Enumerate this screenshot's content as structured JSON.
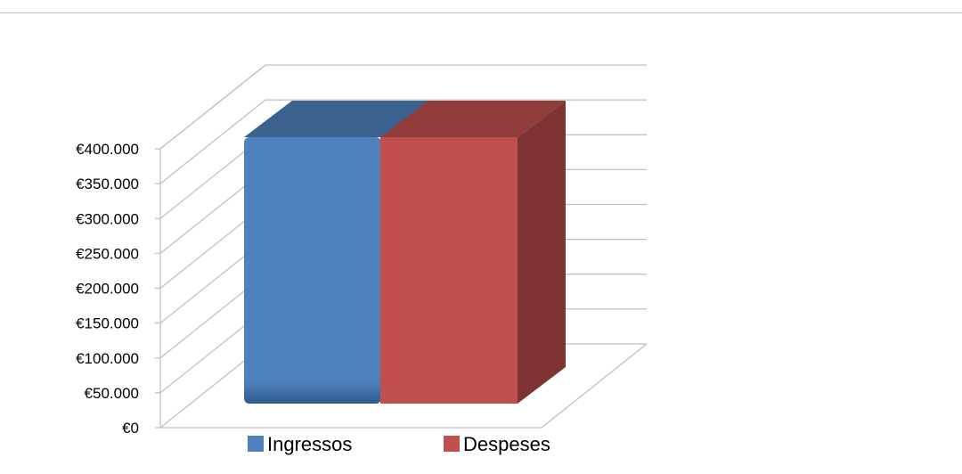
{
  "chart_data": {
    "type": "bar",
    "style": "3d",
    "categories": [
      "Ingressos",
      "Despeses"
    ],
    "values": [
      400000,
      400000
    ],
    "ylim": [
      0,
      400000
    ],
    "yticks": [
      0,
      50000,
      100000,
      150000,
      200000,
      250000,
      300000,
      350000,
      400000
    ],
    "ytick_labels": [
      "€0",
      "€50.000",
      "€100.000",
      "€150.000",
      "€200.000",
      "€250.000",
      "€300.000",
      "€350.000",
      "€400.000"
    ],
    "legend": [
      "Ingressos",
      "Despeses"
    ],
    "legend_placement": "bottom",
    "grid": true,
    "colors": {
      "Ingressos": "#4f81bd",
      "Despeses": "#c0504d"
    },
    "title": "",
    "xlabel": "",
    "ylabel": ""
  }
}
